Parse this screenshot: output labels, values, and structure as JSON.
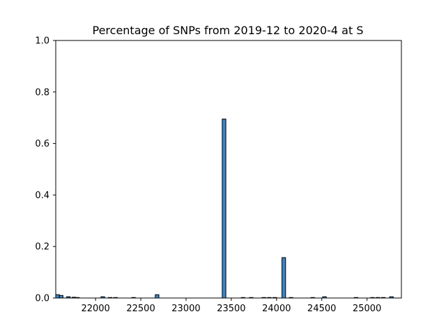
{
  "chart_data": {
    "type": "bar",
    "title": "Percentage of SNPs from 2019-12 to 2020-4 at S",
    "xlabel": "",
    "ylabel": "",
    "xlim": [
      21560,
      25380
    ],
    "ylim": [
      0,
      1.0
    ],
    "grid": false,
    "bar_color": "#3a86c8",
    "edge_color": "#000000",
    "bin_width": 40,
    "x_ticks": [
      22000,
      22500,
      23000,
      23500,
      24000,
      24500,
      25000
    ],
    "x_tick_labels": [
      "22000",
      "22500",
      "23000",
      "23500",
      "24000",
      "24500",
      "25000"
    ],
    "y_ticks": [
      0,
      0.2,
      0.4,
      0.6,
      0.8,
      1.0
    ],
    "y_tick_labels": [
      "0.0",
      "0.2",
      "0.4",
      "0.6",
      "0.8",
      "1.0"
    ],
    "bars": [
      {
        "x": 21580,
        "y": 0.013
      },
      {
        "x": 21620,
        "y": 0.01
      },
      {
        "x": 21700,
        "y": 0.005
      },
      {
        "x": 21760,
        "y": 0.003
      },
      {
        "x": 21800,
        "y": 0.002
      },
      {
        "x": 22080,
        "y": 0.005
      },
      {
        "x": 22160,
        "y": 0.002
      },
      {
        "x": 22220,
        "y": 0.002
      },
      {
        "x": 22420,
        "y": 0.002
      },
      {
        "x": 22680,
        "y": 0.013
      },
      {
        "x": 23420,
        "y": 0.695
      },
      {
        "x": 23630,
        "y": 0.002
      },
      {
        "x": 23720,
        "y": 0.002
      },
      {
        "x": 23860,
        "y": 0.002
      },
      {
        "x": 23920,
        "y": 0.002
      },
      {
        "x": 23980,
        "y": 0.002
      },
      {
        "x": 24080,
        "y": 0.157
      },
      {
        "x": 24160,
        "y": 0.002
      },
      {
        "x": 24400,
        "y": 0.002
      },
      {
        "x": 24530,
        "y": 0.005
      },
      {
        "x": 24880,
        "y": 0.002
      },
      {
        "x": 25060,
        "y": 0.002
      },
      {
        "x": 25120,
        "y": 0.002
      },
      {
        "x": 25180,
        "y": 0.002
      },
      {
        "x": 25270,
        "y": 0.005
      }
    ]
  }
}
